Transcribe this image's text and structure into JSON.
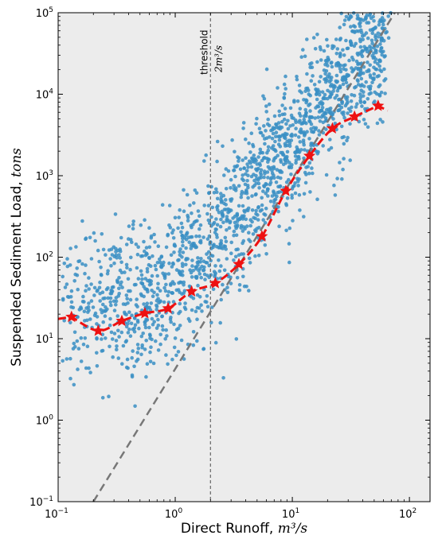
{
  "chart_data": {
    "type": "scatter",
    "title": "",
    "xlabel": "Direct Runoff, ",
    "xlabel_unit": "m³/s",
    "ylabel": "Suspended Sediment Load, ",
    "ylabel_unit": "tons",
    "xscale": "log",
    "yscale": "log",
    "xlim": [
      0.1,
      150
    ],
    "ylim": [
      0.1,
      100000
    ],
    "grid": false,
    "background": "#ececec",
    "x_ticks": [
      {
        "base": "10",
        "exp": "−1",
        "value": 0.1
      },
      {
        "base": "10",
        "exp": "0",
        "value": 1
      },
      {
        "base": "10",
        "exp": "1",
        "value": 10
      },
      {
        "base": "10",
        "exp": "2",
        "value": 100
      }
    ],
    "y_ticks": [
      {
        "base": "10",
        "exp": "−1",
        "value": 0.1
      },
      {
        "base": "10",
        "exp": "0",
        "value": 1
      },
      {
        "base": "10",
        "exp": "1",
        "value": 10
      },
      {
        "base": "10",
        "exp": "2",
        "value": 100
      },
      {
        "base": "10",
        "exp": "3",
        "value": 1000
      },
      {
        "base": "10",
        "exp": "4",
        "value": 10000
      },
      {
        "base": "10",
        "exp": "5",
        "value": 100000
      }
    ],
    "threshold": {
      "x": 2,
      "label": "threshold",
      "value_label": "2m³/s"
    },
    "colors": {
      "points": "#3a8fc4",
      "curve": "#ee1111",
      "reference": "#777777",
      "threshold": "#666666"
    },
    "binned_series": {
      "x": [
        0.13,
        0.22,
        0.35,
        0.55,
        0.87,
        1.38,
        2.2,
        3.5,
        5.5,
        8.8,
        14,
        22,
        34,
        54
      ],
      "y": [
        18.5,
        12.5,
        16.5,
        20.5,
        23.5,
        38,
        48,
        82,
        180,
        650,
        1750,
        3800,
        5300,
        7200
      ]
    },
    "reference_line": {
      "x": [
        0.2,
        75
      ],
      "y": [
        0.1,
        100000
      ]
    },
    "scatter_trend": {
      "a": 25,
      "b": 30,
      "n": 1800,
      "x_range": [
        0.1,
        70
      ],
      "spread_dex": 0.45
    }
  }
}
